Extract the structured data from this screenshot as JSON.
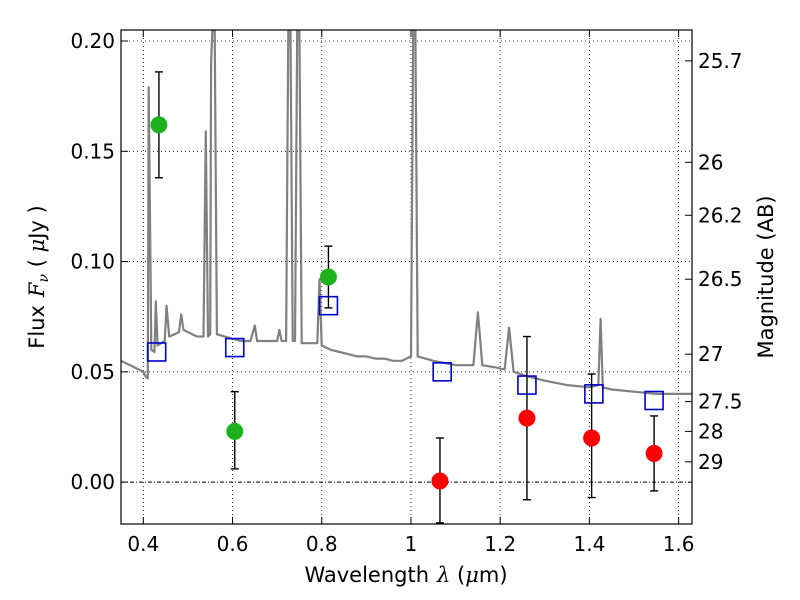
{
  "chart_data": {
    "type": "scatter",
    "xlabel": "Wavelength",
    "xlabel_symbol": "λ",
    "xlabel_unit_open": " (",
    "xlabel_unit_mu": "μ",
    "xlabel_unit_close": "m)",
    "ylabel": "Flux",
    "ylabel_symbol": "F",
    "ylabel_sub": "ν",
    "ylabel_unit_open": " ( ",
    "ylabel_unit_mu": "μ",
    "ylabel_unit_close": "Jy )",
    "y2label": "Magnitude (AB)",
    "xlim": [
      0.35,
      1.63
    ],
    "ylim": [
      -0.019,
      0.205
    ],
    "grid": true,
    "xticks": [
      0.4,
      0.6,
      0.8,
      1.0,
      1.2,
      1.4,
      1.6
    ],
    "xtick_labels": [
      "0.4",
      "0.6",
      "0.8",
      "1",
      "1.2",
      "1.4",
      "1.6"
    ],
    "yticks": [
      0.0,
      0.05,
      0.1,
      0.15,
      0.2
    ],
    "ytick_labels": [
      "0.00",
      "0.05",
      "0.10",
      "0.15",
      "0.20"
    ],
    "y2ticks": [
      {
        "label": "25.7",
        "flux": 0.191
      },
      {
        "label": "26",
        "flux": 0.145
      },
      {
        "label": "26.2",
        "flux": 0.121
      },
      {
        "label": "26.5",
        "flux": 0.092
      },
      {
        "label": "27",
        "flux": 0.058
      },
      {
        "label": "27.5",
        "flux": 0.0365
      },
      {
        "label": "28",
        "flux": 0.023
      },
      {
        "label": "29",
        "flux": 0.0092
      }
    ],
    "template": {
      "color": "#808080",
      "points": [
        [
          0.35,
          0.055
        ],
        [
          0.38,
          0.052
        ],
        [
          0.4,
          0.05
        ],
        [
          0.405,
          0.048
        ],
        [
          0.41,
          0.047
        ],
        [
          0.412,
          0.179
        ],
        [
          0.418,
          0.06
        ],
        [
          0.425,
          0.059
        ],
        [
          0.428,
          0.082
        ],
        [
          0.432,
          0.062
        ],
        [
          0.44,
          0.063
        ],
        [
          0.448,
          0.064
        ],
        [
          0.452,
          0.08
        ],
        [
          0.458,
          0.066
        ],
        [
          0.47,
          0.067
        ],
        [
          0.48,
          0.068
        ],
        [
          0.485,
          0.076
        ],
        [
          0.49,
          0.069
        ],
        [
          0.5,
          0.068
        ],
        [
          0.52,
          0.066
        ],
        [
          0.535,
          0.066
        ],
        [
          0.54,
          0.159
        ],
        [
          0.545,
          0.066
        ],
        [
          0.55,
          0.067
        ],
        [
          0.552,
          0.19
        ],
        [
          0.555,
          0.205
        ],
        [
          0.56,
          0.205
        ],
        [
          0.565,
          0.067
        ],
        [
          0.6,
          0.065
        ],
        [
          0.62,
          0.064
        ],
        [
          0.64,
          0.064
        ],
        [
          0.65,
          0.071
        ],
        [
          0.655,
          0.064
        ],
        [
          0.68,
          0.064
        ],
        [
          0.7,
          0.064
        ],
        [
          0.705,
          0.069
        ],
        [
          0.71,
          0.064
        ],
        [
          0.72,
          0.064
        ],
        [
          0.725,
          0.205
        ],
        [
          0.73,
          0.205
        ],
        [
          0.735,
          0.064
        ],
        [
          0.74,
          0.064
        ],
        [
          0.745,
          0.205
        ],
        [
          0.75,
          0.205
        ],
        [
          0.755,
          0.063
        ],
        [
          0.79,
          0.063
        ],
        [
          0.795,
          0.092
        ],
        [
          0.8,
          0.062
        ],
        [
          0.82,
          0.06
        ],
        [
          0.84,
          0.059
        ],
        [
          0.86,
          0.058
        ],
        [
          0.88,
          0.057
        ],
        [
          0.9,
          0.057
        ],
        [
          0.92,
          0.056
        ],
        [
          0.94,
          0.056
        ],
        [
          0.96,
          0.055
        ],
        [
          0.98,
          0.055
        ],
        [
          1.0,
          0.057
        ],
        [
          1.005,
          0.205
        ],
        [
          1.01,
          0.205
        ],
        [
          1.015,
          0.057
        ],
        [
          1.05,
          0.055
        ],
        [
          1.1,
          0.053
        ],
        [
          1.14,
          0.053
        ],
        [
          1.15,
          0.077
        ],
        [
          1.16,
          0.053
        ],
        [
          1.19,
          0.052
        ],
        [
          1.21,
          0.051
        ],
        [
          1.22,
          0.07
        ],
        [
          1.23,
          0.05
        ],
        [
          1.26,
          0.048
        ],
        [
          1.3,
          0.046
        ],
        [
          1.35,
          0.044
        ],
        [
          1.4,
          0.043
        ],
        [
          1.42,
          0.044
        ],
        [
          1.425,
          0.074
        ],
        [
          1.43,
          0.043
        ],
        [
          1.45,
          0.042
        ],
        [
          1.5,
          0.041
        ],
        [
          1.55,
          0.04
        ],
        [
          1.6,
          0.04
        ],
        [
          1.63,
          0.04
        ]
      ]
    },
    "model_points": {
      "color": "#0000cc",
      "marker": "open-square",
      "points": [
        [
          0.43,
          0.059
        ],
        [
          0.605,
          0.061
        ],
        [
          0.815,
          0.08
        ],
        [
          1.07,
          0.05
        ],
        [
          1.26,
          0.044
        ],
        [
          1.41,
          0.04
        ],
        [
          1.545,
          0.037
        ]
      ]
    },
    "detections": {
      "color": "#1db21d",
      "marker": "filled-circle",
      "points": [
        {
          "x": 0.435,
          "y": 0.162,
          "err_lo": 0.024,
          "err_hi": 0.024
        },
        {
          "x": 0.605,
          "y": 0.023,
          "err_lo": 0.017,
          "err_hi": 0.018
        },
        {
          "x": 0.815,
          "y": 0.093,
          "err_lo": 0.014,
          "err_hi": 0.014
        }
      ]
    },
    "nondetections": {
      "color": "#ff0000",
      "marker": "filled-circle",
      "points": [
        {
          "x": 1.065,
          "y": 0.0005,
          "err_lo": 0.019,
          "err_hi": 0.0195
        },
        {
          "x": 1.26,
          "y": 0.029,
          "err_lo": 0.037,
          "err_hi": 0.037
        },
        {
          "x": 1.405,
          "y": 0.02,
          "err_lo": 0.027,
          "err_hi": 0.029
        },
        {
          "x": 1.545,
          "y": 0.013,
          "err_lo": 0.017,
          "err_hi": 0.017
        }
      ]
    }
  }
}
